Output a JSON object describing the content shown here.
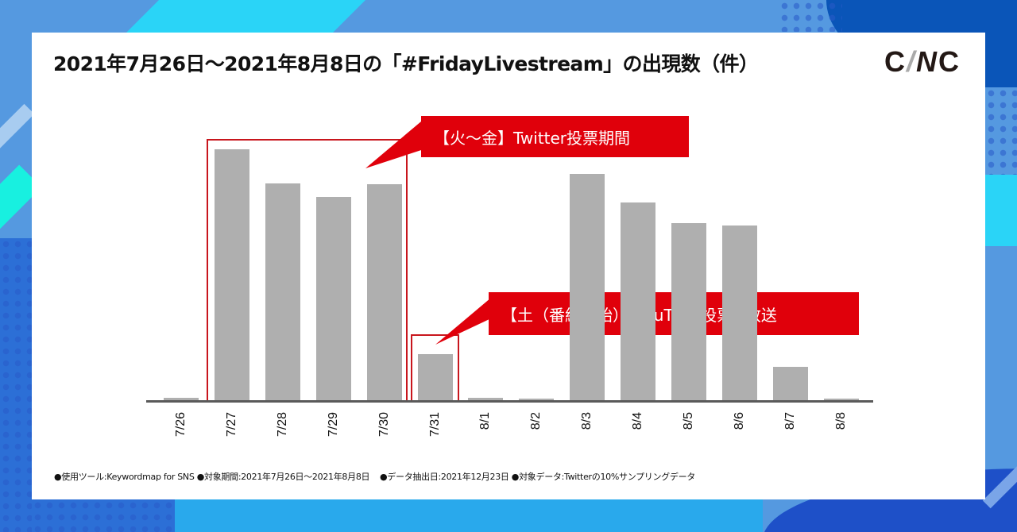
{
  "header": {
    "title": "2021年7月26日〜2021年8月8日の「#FridayLivestream」の出現数（件）",
    "logo": {
      "c1": "C",
      "slash": "/",
      "n": "N",
      "c2": "C"
    }
  },
  "callouts": [
    {
      "label": "【火〜金】Twitter投票期間",
      "spans": [
        "7/27",
        "7/28",
        "7/29",
        "7/30"
      ]
    },
    {
      "label": "【土（番組開始）】YouTube投票&放送",
      "spans": [
        "7/31"
      ]
    }
  ],
  "footnote": "●使用ツール:Keywordmap for SNS ●対象期間:2021年7月26日〜2021年8月8日    ●データ抽出日:2021年12月23日 ●対象データ:Twitterの10%サンプリングデータ",
  "colors": {
    "bar": "#afafaf",
    "axis": "#5a5a5a",
    "highlight": "#c8161d",
    "callout_bg": "#e0000b",
    "background": "#5599e0"
  },
  "chart_data": {
    "type": "bar",
    "title": "2021年7月26日〜2021年8月8日の「#FridayLivestream」の出現数（件）",
    "xlabel": "",
    "ylabel": "出現数（件）",
    "y_axis_shown": false,
    "grid": false,
    "categories": [
      "7/26",
      "7/27",
      "7/28",
      "7/29",
      "7/30",
      "7/31",
      "8/1",
      "8/2",
      "8/3",
      "8/4",
      "8/5",
      "8/6",
      "8/7",
      "8/8"
    ],
    "values": [
      4,
      317,
      274,
      257,
      273,
      59,
      4,
      3,
      286,
      250,
      224,
      221,
      43,
      3
    ],
    "value_units": "relative (no y-axis scale shown; pixel-height estimates)",
    "annotations": [
      {
        "text": "【火〜金】Twitter投票期間",
        "categories": [
          "7/27",
          "7/28",
          "7/29",
          "7/30"
        ]
      },
      {
        "text": "【土（番組開始）】YouTube投票&放送",
        "categories": [
          "7/31"
        ]
      }
    ]
  }
}
